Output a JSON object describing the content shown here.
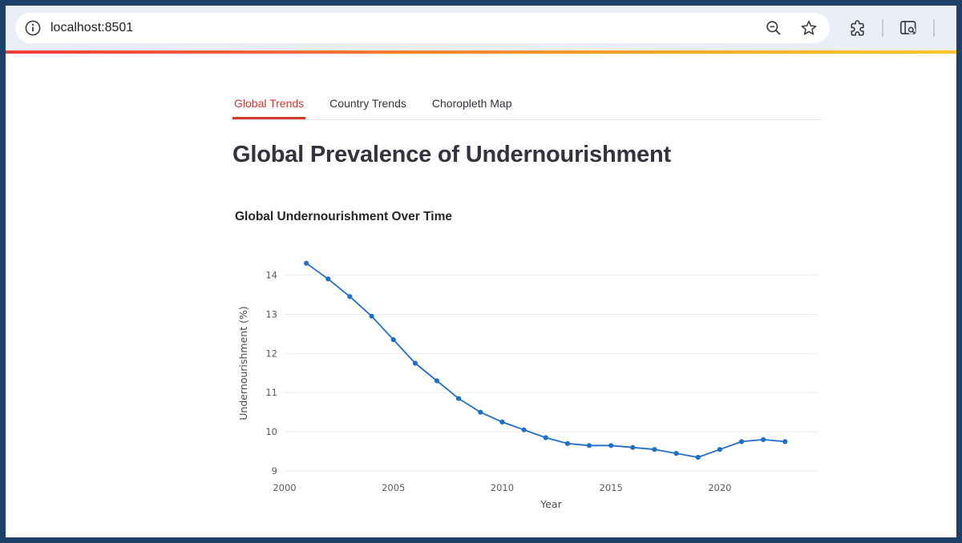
{
  "browser": {
    "url": "localhost:8501",
    "icons": [
      "page-info-icon",
      "zoom-out-icon",
      "bookmark-star-icon",
      "extensions-icon",
      "find-in-page-icon"
    ]
  },
  "tabs": [
    {
      "label": "Global Trends",
      "active": true
    },
    {
      "label": "Country Trends",
      "active": false
    },
    {
      "label": "Choropleth Map",
      "active": false
    }
  ],
  "page": {
    "title": "Global Prevalence of Undernourishment"
  },
  "chart_data": {
    "type": "line",
    "title": "Global Undernourishment Over Time",
    "xlabel": "Year",
    "ylabel": "Undernourishment (%)",
    "x": [
      2001,
      2002,
      2003,
      2004,
      2005,
      2006,
      2007,
      2008,
      2009,
      2010,
      2011,
      2012,
      2013,
      2014,
      2015,
      2016,
      2017,
      2018,
      2019,
      2020,
      2021,
      2022,
      2023
    ],
    "y": [
      14.3,
      13.9,
      13.45,
      12.95,
      12.35,
      11.75,
      11.3,
      10.85,
      10.5,
      10.25,
      10.05,
      9.85,
      9.7,
      9.65,
      9.65,
      9.6,
      9.55,
      9.45,
      9.35,
      9.55,
      9.75,
      9.8,
      9.75
    ],
    "xlim": [
      2000,
      2024.5
    ],
    "ylim": [
      8.9,
      14.6
    ],
    "xticks": [
      2000,
      2005,
      2010,
      2015,
      2020
    ],
    "yticks": [
      9,
      10,
      11,
      12,
      13,
      14
    ],
    "grid": true,
    "legend": "none",
    "line_color": "#1f6fc4",
    "grid_color": "#e9e9e9"
  },
  "colors": {
    "window_border": "#1e3f66",
    "toolbar_bg": "#e9eef7",
    "accent_red": "#cf3a32",
    "decoration_gradient": [
      "#ef3e36",
      "#fdc62e"
    ]
  }
}
